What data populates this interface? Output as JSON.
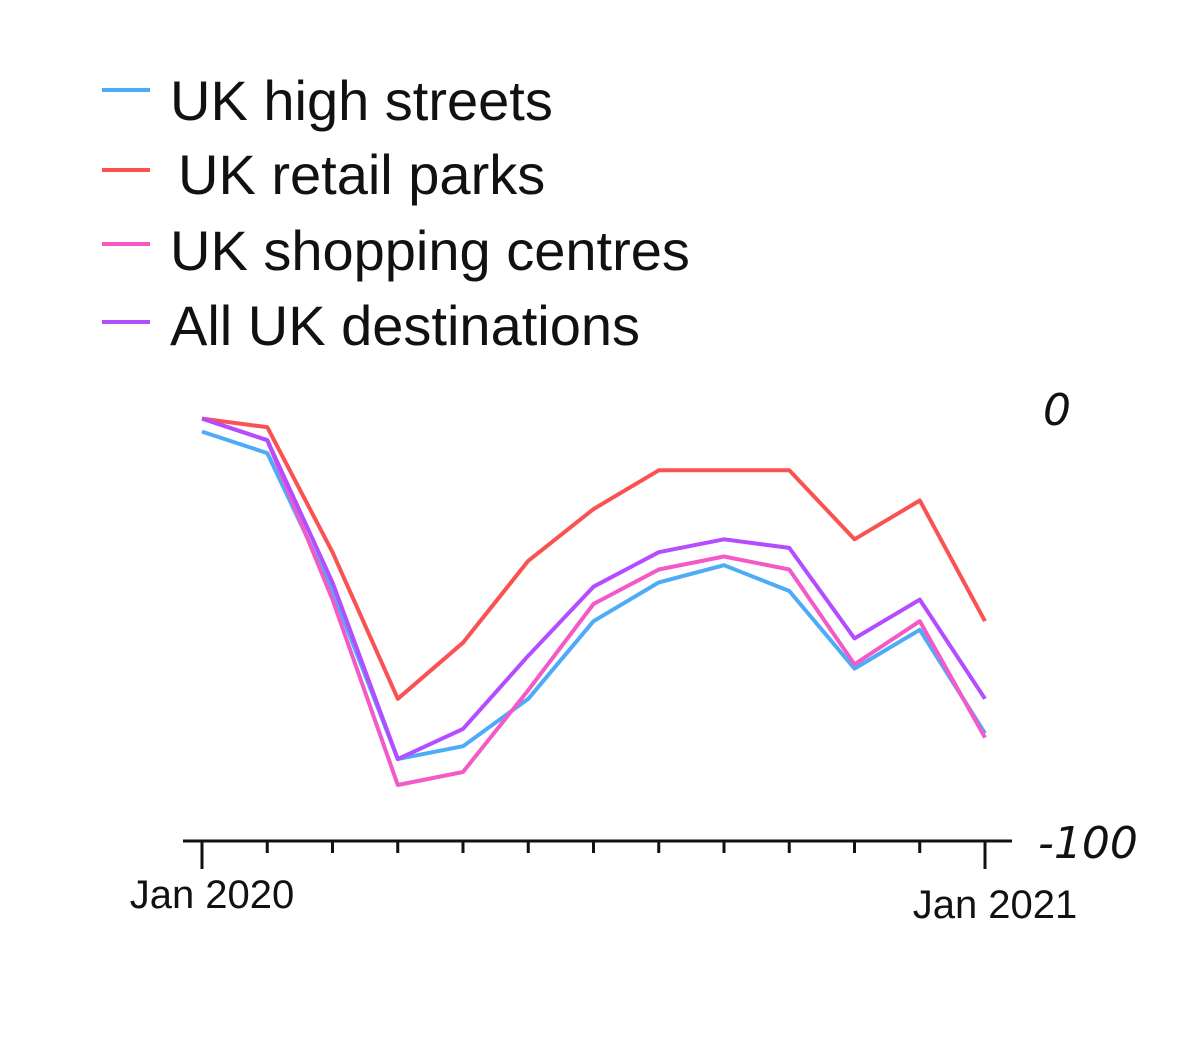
{
  "chart_data": {
    "type": "line",
    "x": [
      "2020-01",
      "2020-02",
      "2020-03",
      "2020-04",
      "2020-05",
      "2020-06",
      "2020-07",
      "2020-08",
      "2020-09",
      "2020-10",
      "2020-11",
      "2020-12",
      "2021-01"
    ],
    "x_tick_labels": [
      "Jan 2020",
      "Jan 2021"
    ],
    "y_tick_labels": [
      "0",
      "-100"
    ],
    "ylim": [
      -100,
      0
    ],
    "legend": "top-left",
    "grid": false,
    "series": [
      {
        "name": "UK high streets",
        "color": "#4dabf7",
        "values": [
          -5,
          -10,
          -42,
          -81,
          -78,
          -67,
          -49,
          -40,
          -36,
          -42,
          -60,
          -51,
          -75
        ]
      },
      {
        "name": "UK retail parks",
        "color": "#fa5252",
        "values": [
          -2,
          -4,
          -33,
          -67,
          -54,
          -35,
          -23,
          -14,
          -14,
          -14,
          -30,
          -21,
          -49
        ]
      },
      {
        "name": "UK shopping centres",
        "color": "#f35ac8",
        "values": [
          -2,
          -7,
          -44,
          -87,
          -84,
          -65,
          -45,
          -37,
          -34,
          -37,
          -59,
          -49,
          -76
        ]
      },
      {
        "name": "All UK destinations",
        "color": "#b44cff",
        "values": [
          -2,
          -7,
          -40,
          -81,
          -74,
          -57,
          -41,
          -33,
          -30,
          -32,
          -53,
          -44,
          -67
        ]
      }
    ]
  }
}
